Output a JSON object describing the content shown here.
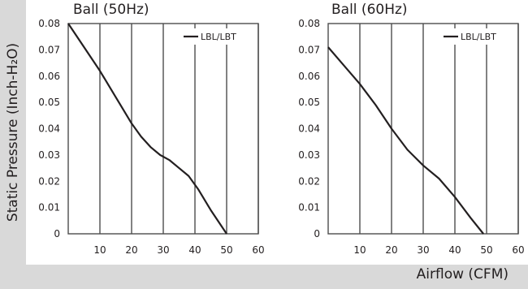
{
  "figure": {
    "ylabel": "Static Pressure (Inch-H₂O)",
    "xlabel": "Airflow (CFM)",
    "band_color": "#d9d9d9",
    "line_color": "#231f20"
  },
  "chart_data": [
    {
      "type": "line",
      "title": "Ball (50Hz)",
      "xlim": [
        0,
        60
      ],
      "ylim": [
        0,
        0.08
      ],
      "x_ticks": [
        "10",
        "20",
        "30",
        "40",
        "50",
        "60"
      ],
      "y_ticks": [
        "0",
        "0.01",
        "0.02",
        "0.03",
        "0.04",
        "0.05",
        "0.06",
        "0.07",
        "0.08"
      ],
      "grid": "vertical",
      "legend": "top-right",
      "series": [
        {
          "name": "LBL/LBT",
          "x": [
            0,
            5,
            10,
            15,
            20,
            23,
            26,
            29,
            32,
            35,
            38,
            41,
            45,
            50
          ],
          "y": [
            0.08,
            0.071,
            0.062,
            0.052,
            0.042,
            0.037,
            0.033,
            0.03,
            0.028,
            0.025,
            0.022,
            0.017,
            0.009,
            0.0
          ]
        }
      ]
    },
    {
      "type": "line",
      "title": "Ball (60Hz)",
      "xlim": [
        0,
        60
      ],
      "ylim": [
        0,
        0.08
      ],
      "x_ticks": [
        "10",
        "20",
        "30",
        "40",
        "50",
        "60"
      ],
      "y_ticks": [
        "0",
        "0.01",
        "0.02",
        "0.03",
        "0.04",
        "0.05",
        "0.06",
        "0.07",
        "0.08"
      ],
      "grid": "vertical",
      "legend": "top-right",
      "series": [
        {
          "name": "LBL/LBT",
          "x": [
            0,
            5,
            10,
            15,
            20,
            25,
            30,
            35,
            40,
            45,
            49
          ],
          "y": [
            0.071,
            0.064,
            0.057,
            0.049,
            0.04,
            0.032,
            0.026,
            0.021,
            0.014,
            0.006,
            0.0
          ]
        }
      ]
    }
  ]
}
